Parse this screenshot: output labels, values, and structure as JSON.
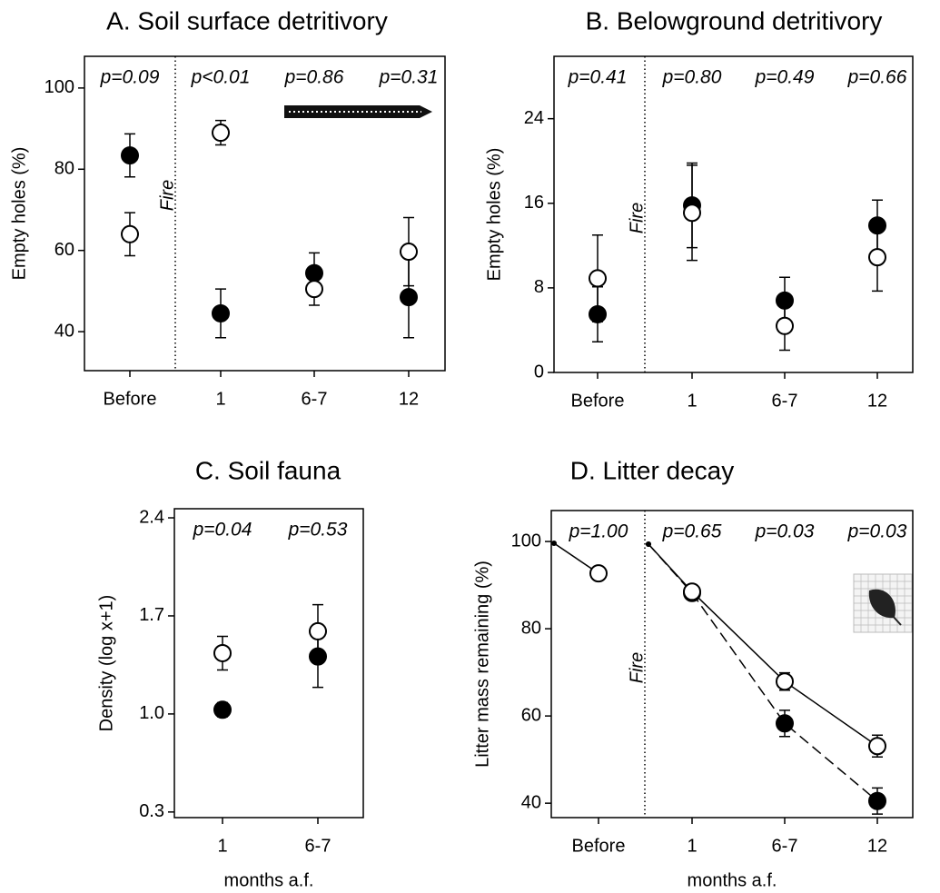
{
  "chart_data": [
    {
      "type": "scatter",
      "title": "A. Soil surface detritivory",
      "y_label": "Empty holes (%)",
      "categories": [
        "Before",
        "1",
        "6-7",
        "12"
      ],
      "annotations": [
        "p=0.09",
        "p<0.01",
        "p=0.86",
        "p=0.31"
      ],
      "event_label": "Fire",
      "ylim": [
        30.4,
        107.8
      ],
      "yticks": [
        40,
        60,
        80,
        100
      ],
      "series": [
        {
          "marker": "filled",
          "color": "#000000",
          "values": [
            83.4,
            44.5,
            54.4,
            48.5
          ],
          "errors": [
            5.3,
            6,
            5,
            10
          ]
        },
        {
          "marker": "open",
          "color": "#000000",
          "values": [
            64,
            89,
            50.5,
            59.7
          ],
          "errors": [
            5.3,
            3,
            4,
            8.4
          ]
        }
      ]
    },
    {
      "type": "scatter",
      "title": "B. Belowground detritivory",
      "y_label": "Empty holes (%)",
      "categories": [
        "Before",
        "1",
        "6-7",
        "12"
      ],
      "annotations": [
        "p=0.41",
        "p=0.80",
        "p=0.49",
        "p=0.66"
      ],
      "event_label": "Fire",
      "ylim": [
        0,
        29.9
      ],
      "yticks": [
        0,
        8,
        16,
        24
      ],
      "series": [
        {
          "marker": "filled",
          "color": "#000000",
          "values": [
            5.5,
            15.8,
            6.8,
            13.9
          ],
          "errors": [
            2.6,
            4,
            2.2,
            2.4
          ]
        },
        {
          "marker": "open",
          "color": "#000000",
          "values": [
            8.9,
            15.1,
            4.4,
            10.9
          ],
          "errors": [
            4.1,
            4.5,
            2.3,
            3.2
          ]
        }
      ]
    },
    {
      "type": "scatter",
      "title": "C. Soil fauna",
      "y_label": "Density (log x+1)",
      "x_label": "months a.f.",
      "categories": [
        "1",
        "6-7"
      ],
      "annotations": [
        "p=0.04",
        "p=0.53"
      ],
      "ylim": [
        0.26,
        2.465
      ],
      "yticks": [
        0.3,
        {
          "value": 1,
          "label": "1.0"
        },
        1.7,
        2.4
      ],
      "series": [
        {
          "marker": "filled",
          "color": "#000000",
          "values": [
            1.03,
            1.41
          ],
          "errors": [
            0.05,
            0.22
          ]
        },
        {
          "marker": "open",
          "color": "#000000",
          "values": [
            1.434,
            1.59
          ],
          "errors": [
            0.12,
            0.19
          ]
        }
      ]
    },
    {
      "type": "line",
      "title": "D. Litter decay",
      "y_label": "Litter mass remaining (%)",
      "x_label": "months a.f.",
      "categories": [
        null,
        "Before",
        null,
        "1",
        "6-7",
        "12"
      ],
      "annotations": [
        null,
        "p=1.00",
        null,
        "p=0.65",
        "p=0.03",
        "p=0.03"
      ],
      "event_label": "Fire",
      "ylim": [
        36.7,
        107.1
      ],
      "yticks": [
        40,
        60,
        80,
        100
      ],
      "series": [
        {
          "marker": "filled",
          "line_style": "dashed",
          "color": "#000000",
          "values": [
            null,
            null,
            99.4,
            88.2,
            58.3,
            40.5
          ],
          "errors": [
            null,
            null,
            null,
            null,
            3,
            3
          ]
        },
        {
          "marker": "open",
          "line_style": "solid",
          "color": "#000000",
          "values": [
            99.6,
            92.7,
            null,
            null,
            null,
            null
          ],
          "errors": [
            null,
            null,
            null,
            null,
            null,
            null
          ]
        },
        {
          "marker": "open",
          "line_style": "solid",
          "color": "#000000",
          "values": [
            null,
            null,
            99.4,
            88.5,
            67.9,
            53.1
          ],
          "errors": [
            null,
            null,
            null,
            null,
            2,
            2.5
          ]
        }
      ]
    }
  ]
}
